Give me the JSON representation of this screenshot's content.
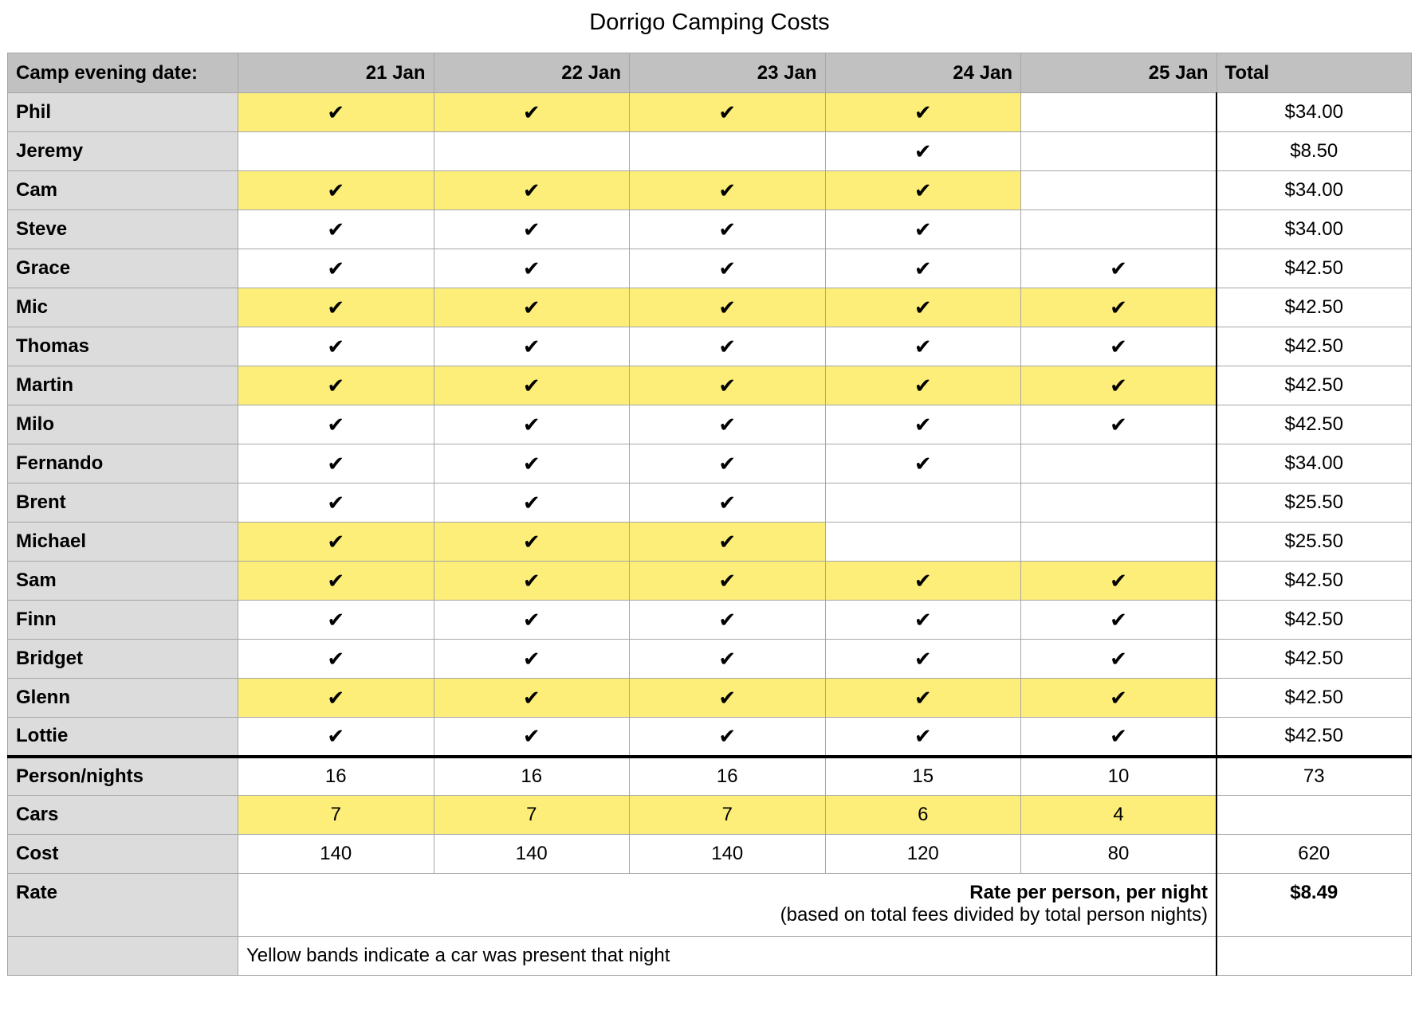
{
  "title": "Dorrigo Camping Costs",
  "header": {
    "label": "Camp evening date:",
    "dates": [
      "21 Jan",
      "22 Jan",
      "23 Jan",
      "24 Jan",
      "25 Jan"
    ],
    "total": "Total"
  },
  "check_glyph": "✔",
  "colors": {
    "car_band": "#fcee79",
    "header": "#c0c1c0",
    "name_col": "#dcdcdc"
  },
  "people": [
    {
      "name": "Phil",
      "nights": [
        1,
        1,
        1,
        1,
        0
      ],
      "car": true,
      "total": "$34.00"
    },
    {
      "name": "Jeremy",
      "nights": [
        0,
        0,
        0,
        1,
        0
      ],
      "car": false,
      "total": "$8.50"
    },
    {
      "name": "Cam",
      "nights": [
        1,
        1,
        1,
        1,
        0
      ],
      "car": true,
      "total": "$34.00"
    },
    {
      "name": "Steve",
      "nights": [
        1,
        1,
        1,
        1,
        0
      ],
      "car": false,
      "total": "$34.00"
    },
    {
      "name": "Grace",
      "nights": [
        1,
        1,
        1,
        1,
        1
      ],
      "car": false,
      "total": "$42.50"
    },
    {
      "name": "Mic",
      "nights": [
        1,
        1,
        1,
        1,
        1
      ],
      "car": true,
      "total": "$42.50"
    },
    {
      "name": "Thomas",
      "nights": [
        1,
        1,
        1,
        1,
        1
      ],
      "car": false,
      "total": "$42.50"
    },
    {
      "name": "Martin",
      "nights": [
        1,
        1,
        1,
        1,
        1
      ],
      "car": true,
      "total": "$42.50"
    },
    {
      "name": "Milo",
      "nights": [
        1,
        1,
        1,
        1,
        1
      ],
      "car": false,
      "total": "$42.50"
    },
    {
      "name": "Fernando",
      "nights": [
        1,
        1,
        1,
        1,
        0
      ],
      "car": false,
      "total": "$34.00"
    },
    {
      "name": "Brent",
      "nights": [
        1,
        1,
        1,
        0,
        0
      ],
      "car": false,
      "total": "$25.50"
    },
    {
      "name": "Michael",
      "nights": [
        1,
        1,
        1,
        0,
        0
      ],
      "car": true,
      "total": "$25.50"
    },
    {
      "name": "Sam",
      "nights": [
        1,
        1,
        1,
        1,
        1
      ],
      "car": true,
      "total": "$42.50"
    },
    {
      "name": "Finn",
      "nights": [
        1,
        1,
        1,
        1,
        1
      ],
      "car": false,
      "total": "$42.50"
    },
    {
      "name": "Bridget",
      "nights": [
        1,
        1,
        1,
        1,
        1
      ],
      "car": false,
      "total": "$42.50"
    },
    {
      "name": "Glenn",
      "nights": [
        1,
        1,
        1,
        1,
        1
      ],
      "car": true,
      "total": "$42.50"
    },
    {
      "name": "Lottie",
      "nights": [
        1,
        1,
        1,
        1,
        1
      ],
      "car": false,
      "total": "$42.50"
    }
  ],
  "summary": [
    {
      "label": "Person/nights",
      "values": [
        "16",
        "16",
        "16",
        "15",
        "10"
      ],
      "total": "73",
      "yellow": false
    },
    {
      "label": "Cars",
      "values": [
        "7",
        "7",
        "7",
        "6",
        "4"
      ],
      "total": "",
      "yellow": true
    },
    {
      "label": "Cost",
      "values": [
        "140",
        "140",
        "140",
        "120",
        "80"
      ],
      "total": "620",
      "yellow": false
    }
  ],
  "rate": {
    "label": "Rate",
    "line1": "Rate per person, per night",
    "line2": "(based on total fees divided by total person nights)",
    "value": "$8.49"
  },
  "note": "Yellow bands indicate a car was present that night"
}
